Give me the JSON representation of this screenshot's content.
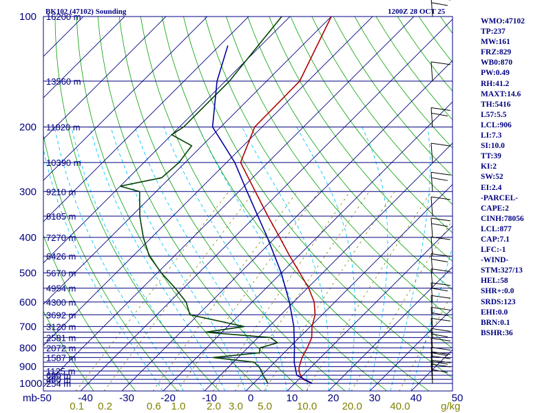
{
  "chart_data": {
    "type": "skew-t log-p sounding",
    "title_left": "BK102 (47102) Sounding",
    "title_right": "1200Z 28 OCT 25",
    "pressure_label_unit": "mb",
    "mixing_ratio_unit": "g/kg",
    "pressure_levels": [
      100,
      200,
      300,
      400,
      500,
      600,
      700,
      800,
      900,
      1000
    ],
    "temperature_ticks": [
      -50,
      -40,
      -30,
      -20,
      -10,
      0,
      10,
      20,
      30,
      40,
      50
    ],
    "mixing_ratio_ticks": [
      0.1,
      0.2,
      0.6,
      1.0,
      2.0,
      3.0,
      5.0,
      10.0,
      20.0,
      40.0
    ],
    "height_labels": [
      {
        "p": 1000,
        "label": "254 m"
      },
      {
        "p": 975,
        "label": "480 m"
      },
      {
        "p": 950,
        "label": "680 m"
      },
      {
        "p": 925,
        "label": "1125 m"
      },
      {
        "p": 850,
        "label": "1587 m"
      },
      {
        "p": 800,
        "label": "2072 m"
      },
      {
        "p": 750,
        "label": "2581 m"
      },
      {
        "p": 700,
        "label": "3120 m"
      },
      {
        "p": 650,
        "label": "3692 m"
      },
      {
        "p": 600,
        "label": "4300 m"
      },
      {
        "p": 550,
        "label": "4954 m"
      },
      {
        "p": 500,
        "label": "5670 m"
      },
      {
        "p": 450,
        "label": "6426 m"
      },
      {
        "p": 400,
        "label": "7270 m"
      },
      {
        "p": 350,
        "label": "8185 m"
      },
      {
        "p": 300,
        "label": "9210 m"
      },
      {
        "p": 250,
        "label": "10390 m"
      },
      {
        "p": 200,
        "label": "11820 m"
      },
      {
        "p": 150,
        "label": "13560 m"
      },
      {
        "p": 100,
        "label": "16200 m"
      }
    ],
    "extra_level_lines": [
      1000,
      975,
      950,
      925,
      900,
      875,
      850,
      825,
      800,
      775,
      750,
      725,
      700,
      650,
      600,
      550,
      500,
      450,
      400,
      350,
      300,
      250,
      200,
      150,
      100
    ],
    "series": [
      {
        "name": "Temperature",
        "color": "#b00000",
        "points": [
          [
            1000,
            14.2
          ],
          [
            975,
            11.0
          ],
          [
            950,
            9.4
          ],
          [
            925,
            8.0
          ],
          [
            900,
            7.0
          ],
          [
            850,
            5.5
          ],
          [
            800,
            4.4
          ],
          [
            750,
            3.0
          ],
          [
            700,
            0.4
          ],
          [
            650,
            -1.7
          ],
          [
            600,
            -5.0
          ],
          [
            550,
            -9.7
          ],
          [
            500,
            -15.5
          ],
          [
            450,
            -22.0
          ],
          [
            400,
            -29.0
          ],
          [
            350,
            -37.0
          ],
          [
            300,
            -46.0
          ],
          [
            250,
            -56.6
          ],
          [
            200,
            -61.8
          ],
          [
            150,
            -62.0
          ],
          [
            100,
            -70.0
          ]
        ]
      },
      {
        "name": "Dewpoint",
        "color": "#004000",
        "points": [
          [
            1000,
            3.5
          ],
          [
            975,
            2.0
          ],
          [
            950,
            0.3
          ],
          [
            925,
            -1.0
          ],
          [
            900,
            -2.8
          ],
          [
            875,
            -5.0
          ],
          [
            850,
            -16.0
          ],
          [
            825,
            -6.0
          ],
          [
            800,
            -7.0
          ],
          [
            775,
            -4.0
          ],
          [
            750,
            -7.0
          ],
          [
            725,
            -24.0
          ],
          [
            700,
            -16.0
          ],
          [
            650,
            -32.0
          ],
          [
            600,
            -36.0
          ],
          [
            550,
            -42.0
          ],
          [
            500,
            -49.0
          ],
          [
            450,
            -56.0
          ],
          [
            400,
            -62.0
          ],
          [
            350,
            -68.0
          ],
          [
            300,
            -74.0
          ],
          [
            290,
            -80.0
          ],
          [
            275,
            -72.0
          ],
          [
            250,
            -71.5
          ],
          [
            225,
            -72.5
          ],
          [
            210,
            -80.0
          ],
          [
            200,
            -79.0
          ],
          [
            150,
            -79.0
          ],
          [
            100,
            -82.0
          ]
        ]
      },
      {
        "name": "Parcel",
        "color": "#0000a0",
        "points": [
          [
            1000,
            14.2
          ],
          [
            950,
            8.5
          ],
          [
            877,
            4.8
          ],
          [
            800,
            1.3
          ],
          [
            700,
            -4.0
          ],
          [
            600,
            -11.0
          ],
          [
            500,
            -20.0
          ],
          [
            400,
            -32.0
          ],
          [
            300,
            -48.0
          ],
          [
            250,
            -58.0
          ],
          [
            200,
            -72.0
          ],
          [
            150,
            -82.0
          ],
          [
            120,
            -88.0
          ]
        ]
      }
    ],
    "wind_barbs_pressure": [
      1000,
      975,
      950,
      925,
      900,
      850,
      800,
      750,
      700,
      650,
      600,
      550,
      500,
      450,
      400,
      350,
      300,
      250,
      200,
      150,
      100
    ],
    "grid": true
  },
  "indices": [
    "WMO:47102",
    "TP:237",
    "MW:161",
    "FRZ:829",
    "WB0:870",
    "PW:0.49",
    "RH:41.2",
    "MAXT:14.6",
    "TH:5416",
    "L57:5.5",
    "LCL:906",
    "LI:7.3",
    "SI:10.0",
    "TT:39",
    "KI:2",
    "SW:52",
    "EI:2.4",
    "-PARCEL-",
    "CAPE:2",
    "CINH:78056",
    "LCL:877",
    "CAP:7.1",
    "LFC:-1",
    "-WIND-",
    "STM:327/13",
    "HEL:58",
    "SHR+:0.0",
    "SRDS:123",
    "EHI:0.0",
    "BRN:0.1",
    "BSHR:36"
  ],
  "colors": {
    "isobar": "#000080",
    "isotherm": "#000080",
    "dry_adiabat": "#00a000",
    "moist_adiabat": "#00c8ff",
    "mixing_ratio": "#808000",
    "text": "#000080"
  }
}
